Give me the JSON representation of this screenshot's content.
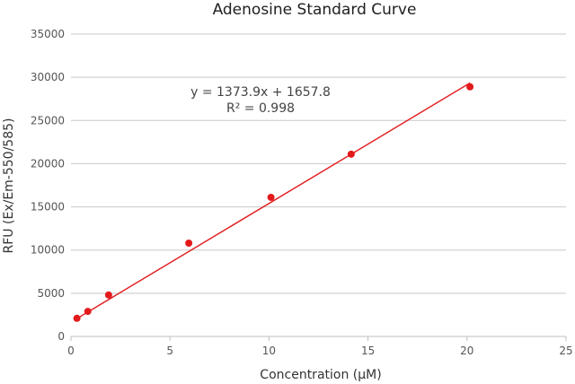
{
  "chart_data": {
    "type": "scatter",
    "title": "Adenosine Standard Curve",
    "xlabel": "Concentration (μM)",
    "ylabel": "RFU (Ex/Em-550/585)",
    "xlim": [
      0,
      25
    ],
    "ylim": [
      0,
      35000
    ],
    "x_ticks": [
      0,
      5,
      10,
      15,
      20,
      25
    ],
    "y_ticks": [
      0,
      5000,
      10000,
      15000,
      20000,
      25000,
      30000,
      35000
    ],
    "grid": "horizontal",
    "series": [
      {
        "x": [
          0.3,
          0.85,
          1.9,
          5.95,
          10.1,
          14.15,
          20.15
        ],
        "y": [
          2100,
          2900,
          4800,
          10800,
          16100,
          21100,
          28900
        ],
        "color": "#e31a1c"
      }
    ],
    "trendline": {
      "slope": 1373.9,
      "intercept": 1657.8,
      "x_range": [
        0.3,
        20.15
      ],
      "color": "#e31a1c"
    },
    "annotation": {
      "equation": "y = 1373.9x + 1657.8",
      "r_squared": "R² = 0.998"
    }
  }
}
